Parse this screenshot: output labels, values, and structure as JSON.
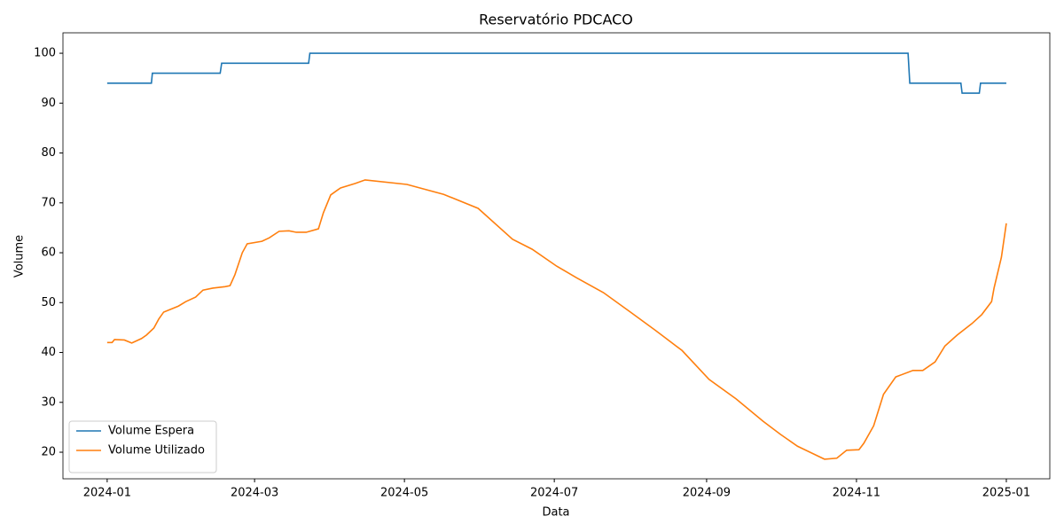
{
  "chart_data": {
    "type": "line",
    "title": "Reservatório PDCACO",
    "x_label": "Data",
    "y_label": "Volume",
    "xlim": [
      -18,
      383.7
    ],
    "ylim": [
      14.67,
      104.1
    ],
    "xticks": [
      {
        "value": 0,
        "label": "2024-01"
      },
      {
        "value": 60,
        "label": "2024-03"
      },
      {
        "value": 121,
        "label": "2024-05"
      },
      {
        "value": 182,
        "label": "2024-07"
      },
      {
        "value": 244,
        "label": "2024-09"
      },
      {
        "value": 305,
        "label": "2024-11"
      },
      {
        "value": 366,
        "label": "2025-01"
      }
    ],
    "yticks": [
      20,
      30,
      40,
      50,
      60,
      70,
      80,
      90,
      100
    ],
    "legend": "lower left",
    "series": [
      {
        "name": "Volume Espera",
        "color": "#1f77b4",
        "x": [
          0,
          18,
          18.4,
          46,
          46.6,
          82,
          82.5,
          326,
          326.7,
          347.5,
          348,
          355,
          355.5,
          366
        ],
        "values": [
          94,
          94,
          96,
          96,
          98,
          98,
          100,
          100,
          94,
          94,
          92,
          92,
          94,
          94
        ]
      },
      {
        "name": "Volume Utilizado",
        "color": "#ff7f0e",
        "x": [
          0,
          2,
          3,
          7,
          10,
          14,
          16,
          19,
          21,
          23,
          29,
          32,
          36,
          39,
          43,
          48,
          50,
          52,
          55,
          57,
          63,
          66,
          70,
          74,
          77,
          81,
          86,
          88,
          91,
          95,
          101,
          105,
          122,
          137,
          151,
          165,
          173,
          183,
          191,
          202,
          213,
          223,
          234,
          245,
          256,
          267,
          274,
          281,
          292,
          297,
          301,
          306,
          308,
          312,
          316,
          321,
          328,
          332,
          337,
          341,
          346,
          352,
          356,
          360,
          361,
          364,
          366
        ],
        "values": [
          42.0,
          42.0,
          42.6,
          42.5,
          41.9,
          42.8,
          43.5,
          44.9,
          46.7,
          48.1,
          49.3,
          50.2,
          51.1,
          52.5,
          52.9,
          53.2,
          53.4,
          55.6,
          60.0,
          61.8,
          62.3,
          63.0,
          64.3,
          64.4,
          64.1,
          64.1,
          64.8,
          68.0,
          71.6,
          73.0,
          73.9,
          74.6,
          73.7,
          71.7,
          68.9,
          62.7,
          60.7,
          57.3,
          55.0,
          52.0,
          48.1,
          44.5,
          40.4,
          34.6,
          30.7,
          26.2,
          23.6,
          21.2,
          18.6,
          18.8,
          20.4,
          20.5,
          21.8,
          25.3,
          31.6,
          35.1,
          36.4,
          36.4,
          38.1,
          41.3,
          43.5,
          45.8,
          47.6,
          50.2,
          52.9,
          59.1,
          65.9
        ]
      }
    ]
  }
}
